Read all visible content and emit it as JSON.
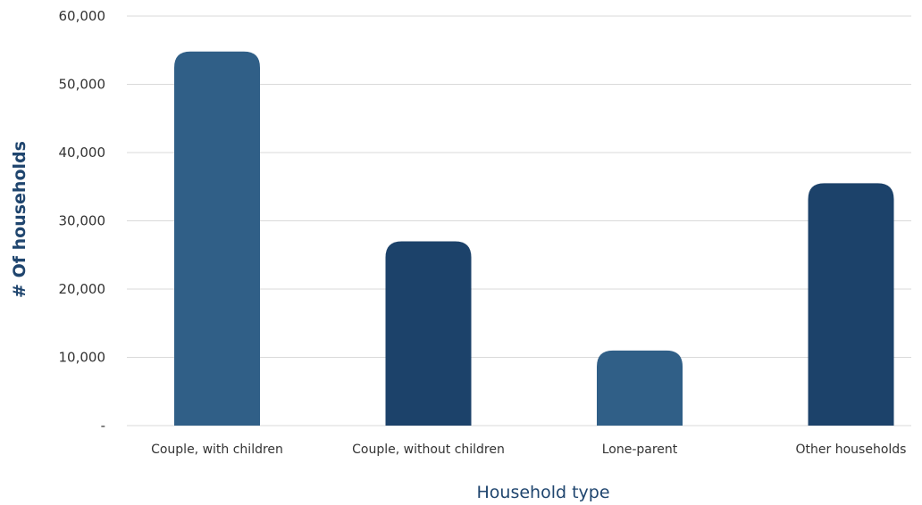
{
  "chart_data": {
    "type": "bar",
    "title": "",
    "xlabel": "Household type",
    "ylabel": "# Of households",
    "categories": [
      "Couple, with children",
      "Couple, without children",
      "Lone-parent",
      "Other households"
    ],
    "values": [
      54800,
      27000,
      11000,
      35500
    ],
    "bar_colors": [
      "#305f87",
      "#1c426a",
      "#305f87",
      "#1c426a"
    ],
    "axis_title_color": "#1f456e",
    "gridline_color": "#d9d9d9",
    "ylim": [
      0,
      60000
    ],
    "yticks": [
      0,
      10000,
      20000,
      30000,
      40000,
      50000,
      60000
    ],
    "ytick_labels": [
      "-",
      "10,000",
      "20,000",
      "30,000",
      "40,000",
      "50,000",
      "60,000"
    ],
    "grid": true,
    "legend": "none"
  }
}
